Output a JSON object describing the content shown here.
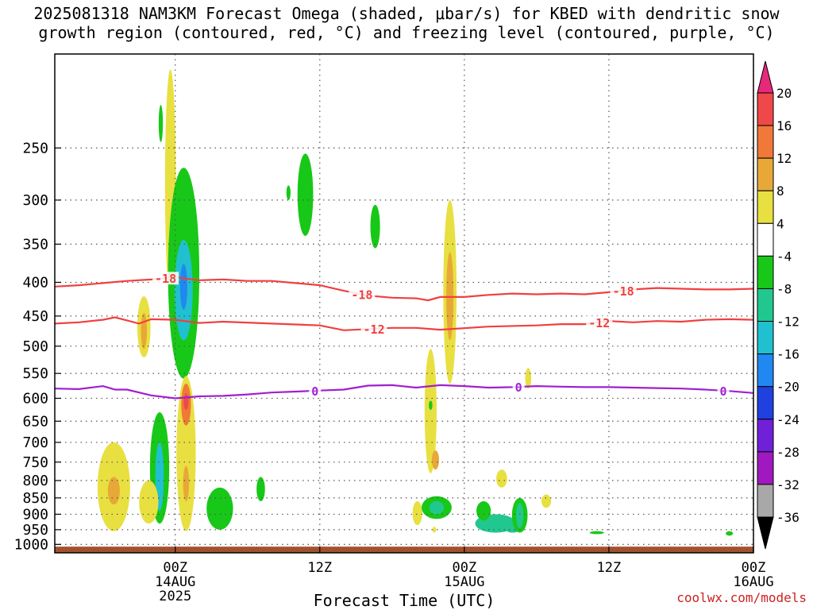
{
  "title_line1": "2025081318 NAM3KM Forecast Omega (shaded, μbar/s) for KBED with dendritic snow",
  "title_line2": "growth region (contoured, red, °C) and freezing level (contoured, purple, °C)",
  "credit": "coolwx.com/models",
  "chart_data": {
    "type": "heatmap",
    "title": "2025081318 NAM3KM Forecast Omega (shaded, μbar/s) for KBED with dendritic snow growth region (contoured, red, °C) and freezing level (contoured, purple, °C)",
    "xlabel": "Forecast Time (UTC)",
    "ylabel": "",
    "x_range_hours_from_start": [
      -4,
      54
    ],
    "y_range_hPa": [
      1030,
      180
    ],
    "y_scale": "log-pressure",
    "grid": "dotted",
    "x_ticks": [
      {
        "hour": 6,
        "lines": [
          "00Z",
          "14AUG",
          "2025"
        ]
      },
      {
        "hour": 18,
        "lines": [
          "12Z"
        ]
      },
      {
        "hour": 30,
        "lines": [
          "00Z",
          "15AUG"
        ]
      },
      {
        "hour": 42,
        "lines": [
          "12Z"
        ]
      },
      {
        "hour": 54,
        "lines": [
          "00Z",
          "16AUG"
        ]
      }
    ],
    "y_ticks": [
      250,
      300,
      350,
      400,
      450,
      500,
      550,
      600,
      650,
      700,
      750,
      800,
      850,
      900,
      950,
      1000
    ],
    "colorbar": {
      "levels": [
        20,
        16,
        12,
        8,
        4,
        -4,
        -8,
        -12,
        -16,
        -20,
        -24,
        -28,
        -32,
        -36
      ],
      "colors": [
        "#e8287a",
        "#f04848",
        "#f07838",
        "#e8a838",
        "#e8e040",
        "#ffffff",
        "#18c818",
        "#20c890",
        "#20c0d0",
        "#2088f0",
        "#2040e0",
        "#7020d8",
        "#a018c0",
        "#a8a8a8",
        "#000000"
      ]
    },
    "contours": [
      {
        "name": "-18",
        "color": "#f04040",
        "label_hours": [
          5.2,
          21.5,
          43.2
        ],
        "points": [
          [
            -4,
            406
          ],
          [
            -2,
            404
          ],
          [
            0,
            401
          ],
          [
            2,
            398
          ],
          [
            4,
            396
          ],
          [
            6,
            393
          ],
          [
            8,
            397
          ],
          [
            10,
            396
          ],
          [
            12,
            398
          ],
          [
            14,
            398
          ],
          [
            16,
            401
          ],
          [
            18,
            404
          ],
          [
            20,
            412
          ],
          [
            22,
            419
          ],
          [
            24,
            422
          ],
          [
            26,
            423
          ],
          [
            27,
            426
          ],
          [
            28,
            421
          ],
          [
            30,
            421
          ],
          [
            32,
            418
          ],
          [
            34,
            416
          ],
          [
            36,
            417
          ],
          [
            38,
            416
          ],
          [
            40,
            417
          ],
          [
            42,
            414
          ],
          [
            44,
            410
          ],
          [
            46,
            408
          ],
          [
            48,
            409
          ],
          [
            50,
            410
          ],
          [
            52,
            410
          ],
          [
            54,
            409
          ]
        ]
      },
      {
        "name": "-12",
        "color": "#f04040",
        "label_hours": [
          22.5,
          41.2
        ],
        "points": [
          [
            -4,
            462
          ],
          [
            -2,
            460
          ],
          [
            0,
            456
          ],
          [
            1,
            452
          ],
          [
            3,
            462
          ],
          [
            4,
            455
          ],
          [
            6,
            456
          ],
          [
            8,
            461
          ],
          [
            10,
            459
          ],
          [
            14,
            462
          ],
          [
            18,
            465
          ],
          [
            20,
            473
          ],
          [
            22,
            471
          ],
          [
            24,
            469
          ],
          [
            26,
            469
          ],
          [
            28,
            472
          ],
          [
            32,
            467
          ],
          [
            36,
            465
          ],
          [
            38,
            463
          ],
          [
            40,
            463
          ],
          [
            42,
            458
          ],
          [
            44,
            460
          ],
          [
            46,
            458
          ],
          [
            48,
            459
          ],
          [
            50,
            456
          ],
          [
            52,
            455
          ],
          [
            54,
            456
          ]
        ]
      },
      {
        "name": "0",
        "color": "#a020d0",
        "label_hours": [
          17.6,
          34.5,
          51.5
        ],
        "points": [
          [
            -4,
            580
          ],
          [
            -2,
            581
          ],
          [
            0,
            575
          ],
          [
            1,
            582
          ],
          [
            2,
            582
          ],
          [
            4,
            594
          ],
          [
            6,
            600
          ],
          [
            8,
            596
          ],
          [
            10,
            595
          ],
          [
            12,
            592
          ],
          [
            14,
            588
          ],
          [
            16,
            586
          ],
          [
            18,
            584
          ],
          [
            20,
            582
          ],
          [
            22,
            574
          ],
          [
            24,
            573
          ],
          [
            26,
            578
          ],
          [
            28,
            573
          ],
          [
            30,
            575
          ],
          [
            32,
            578
          ],
          [
            34,
            577
          ],
          [
            36,
            575
          ],
          [
            38,
            576
          ],
          [
            40,
            577
          ],
          [
            42,
            577
          ],
          [
            44,
            578
          ],
          [
            46,
            579
          ],
          [
            48,
            580
          ],
          [
            50,
            582
          ],
          [
            52,
            585
          ],
          [
            54,
            589
          ]
        ]
      }
    ],
    "omega_features": [
      {
        "name": "A",
        "hour": 5.6,
        "p_top": 190,
        "p_bottom": 420,
        "width_h": 0.9,
        "value": 6
      },
      {
        "name": "B",
        "hour": 6.7,
        "p_top": 268,
        "p_bottom": 560,
        "width_h": 2.6,
        "value": -8
      },
      {
        "name": "C",
        "hour": 6.7,
        "p_top": 345,
        "p_bottom": 490,
        "width_h": 1.5,
        "value": -14
      },
      {
        "name": "D",
        "hour": 6.7,
        "p_top": 375,
        "p_bottom": 440,
        "width_h": 0.6,
        "value": -18
      },
      {
        "name": "E",
        "hour": 3.4,
        "p_top": 420,
        "p_bottom": 520,
        "width_h": 1.1,
        "value": 5
      },
      {
        "name": "F",
        "hour": 3.4,
        "p_top": 445,
        "p_bottom": 505,
        "width_h": 0.5,
        "value": 10
      },
      {
        "name": "G",
        "hour": 4.7,
        "p_top": 630,
        "p_bottom": 930,
        "width_h": 1.6,
        "value": -8
      },
      {
        "name": "H",
        "hour": 4.7,
        "p_top": 700,
        "p_bottom": 890,
        "width_h": 0.7,
        "value": -13
      },
      {
        "name": "I",
        "hour": 6.9,
        "p_top": 555,
        "p_bottom": 955,
        "width_h": 1.6,
        "value": 6
      },
      {
        "name": "J",
        "hour": 6.9,
        "p_top": 570,
        "p_bottom": 660,
        "width_h": 0.8,
        "value": 13
      },
      {
        "name": "K",
        "hour": 6.9,
        "p_top": 590,
        "p_bottom": 625,
        "width_h": 0.4,
        "value": 17
      },
      {
        "name": "L",
        "hour": 6.9,
        "p_top": 760,
        "p_bottom": 860,
        "width_h": 0.5,
        "value": 10
      },
      {
        "name": "M",
        "hour": 0.9,
        "p_top": 700,
        "p_bottom": 955,
        "width_h": 2.7,
        "value": 5
      },
      {
        "name": "N",
        "hour": 0.9,
        "p_top": 790,
        "p_bottom": 870,
        "width_h": 1.0,
        "value": 10
      },
      {
        "name": "O",
        "hour": 3.8,
        "p_top": 800,
        "p_bottom": 930,
        "width_h": 1.6,
        "value": 6
      },
      {
        "name": "P",
        "hour": 9.7,
        "p_top": 820,
        "p_bottom": 950,
        "width_h": 2.2,
        "value": -8
      },
      {
        "name": "Q",
        "hour": 13.1,
        "p_top": 790,
        "p_bottom": 860,
        "width_h": 0.7,
        "value": -7
      },
      {
        "name": "R",
        "hour": 4.8,
        "p_top": 215,
        "p_bottom": 245,
        "width_h": 0.35,
        "value": -6
      },
      {
        "name": "S",
        "hour": 15.4,
        "p_top": 285,
        "p_bottom": 300,
        "width_h": 0.35,
        "value": -7
      },
      {
        "name": "T",
        "hour": 16.8,
        "p_top": 255,
        "p_bottom": 340,
        "width_h": 1.3,
        "value": -8
      },
      {
        "name": "U",
        "hour": 22.6,
        "p_top": 305,
        "p_bottom": 355,
        "width_h": 0.8,
        "value": -7
      },
      {
        "name": "V",
        "hour": 28.8,
        "p_top": 300,
        "p_bottom": 570,
        "width_h": 1.1,
        "value": 5
      },
      {
        "name": "W",
        "hour": 28.8,
        "p_top": 360,
        "p_bottom": 490,
        "width_h": 0.6,
        "value": 10
      },
      {
        "name": "X",
        "hour": 27.2,
        "p_top": 505,
        "p_bottom": 780,
        "width_h": 1.0,
        "value": 5
      },
      {
        "name": "Y",
        "hour": 27.6,
        "p_top": 720,
        "p_bottom": 770,
        "width_h": 0.6,
        "value": 9
      },
      {
        "name": "Z",
        "hour": 26.1,
        "p_top": 860,
        "p_bottom": 935,
        "width_h": 0.8,
        "value": 6
      },
      {
        "name": "AA",
        "hour": 27.7,
        "p_top": 845,
        "p_bottom": 915,
        "width_h": 2.5,
        "value": -8
      },
      {
        "name": "AB",
        "hour": 27.7,
        "p_top": 860,
        "p_bottom": 900,
        "width_h": 1.2,
        "value": -11
      },
      {
        "name": "AC",
        "hour": 27.2,
        "p_top": 605,
        "p_bottom": 625,
        "width_h": 0.3,
        "value": -6
      },
      {
        "name": "AD",
        "hour": 32.6,
        "p_top": 900,
        "p_bottom": 960,
        "width_h": 3.4,
        "value": -9
      },
      {
        "name": "AE",
        "hour": 34.0,
        "p_top": 920,
        "p_bottom": 960,
        "width_h": 1.5,
        "value": -12
      },
      {
        "name": "AF",
        "hour": 34.6,
        "p_top": 850,
        "p_bottom": 960,
        "width_h": 1.3,
        "value": -8
      },
      {
        "name": "AG",
        "hour": 34.6,
        "p_top": 865,
        "p_bottom": 945,
        "width_h": 0.6,
        "value": -12
      },
      {
        "name": "AH",
        "hour": 31.6,
        "p_top": 860,
        "p_bottom": 920,
        "width_h": 1.2,
        "value": -7
      },
      {
        "name": "AI",
        "hour": 33.1,
        "p_top": 770,
        "p_bottom": 820,
        "width_h": 0.9,
        "value": 5
      },
      {
        "name": "AJ",
        "hour": 35.3,
        "p_top": 540,
        "p_bottom": 580,
        "width_h": 0.5,
        "value": 5
      },
      {
        "name": "AK",
        "hour": 36.8,
        "p_top": 840,
        "p_bottom": 880,
        "width_h": 0.8,
        "value": 6
      },
      {
        "name": "AL",
        "hour": 27.5,
        "p_top": 940,
        "p_bottom": 960,
        "width_h": 0.3,
        "value": 5
      },
      {
        "name": "AM",
        "hour": 41.0,
        "p_top": 955,
        "p_bottom": 965,
        "width_h": 1.2,
        "value": -6
      },
      {
        "name": "AN",
        "hour": 52.0,
        "p_top": 955,
        "p_bottom": 970,
        "width_h": 0.6,
        "value": -6
      }
    ],
    "terrain_top_hPa": 1008
  }
}
